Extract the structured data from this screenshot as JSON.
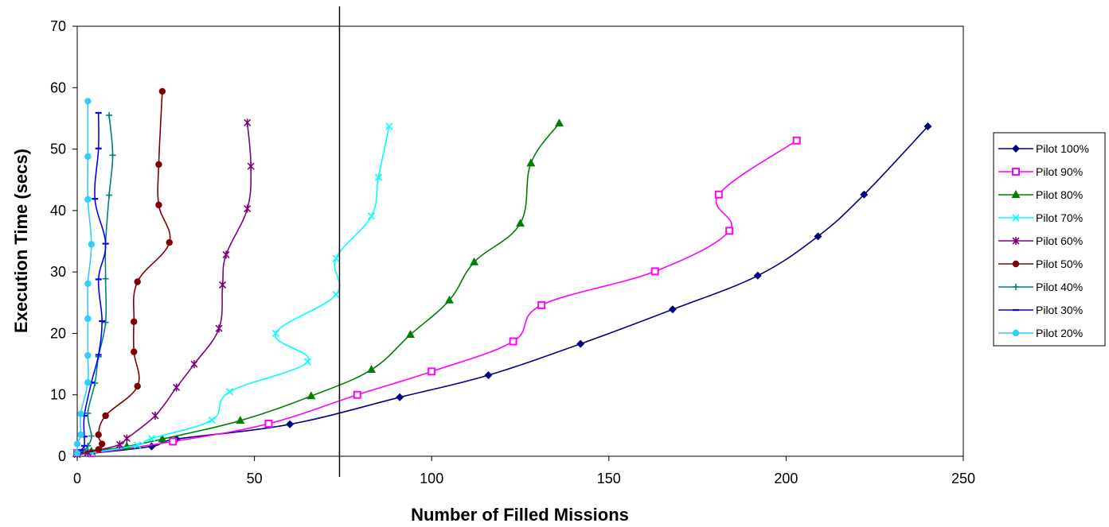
{
  "chart_data": {
    "type": "line",
    "title": "",
    "xlabel": "Number of Filled Missions",
    "ylabel": "Execution Time (secs)",
    "xlim": [
      0,
      250
    ],
    "ylim": [
      0,
      70
    ],
    "xticks": [
      "0",
      "50",
      "100",
      "150",
      "200",
      "250"
    ],
    "yticks": [
      "0",
      "10",
      "20",
      "30",
      "40",
      "50",
      "60",
      "70"
    ],
    "grid": false,
    "legend_position": "right",
    "vertical_reference_line_x": 74,
    "series": [
      {
        "name": "Pilot 100%",
        "color": "#000080",
        "marker": "diamond",
        "points": [
          [
            0,
            0.5
          ],
          [
            4,
            0.5
          ],
          [
            21,
            1.6
          ],
          [
            28,
            2.8
          ],
          [
            60,
            5.2
          ],
          [
            91,
            9.6
          ],
          [
            116,
            13.2
          ],
          [
            142,
            18.3
          ],
          [
            168,
            23.9
          ],
          [
            192,
            29.4
          ],
          [
            209,
            35.8
          ],
          [
            222,
            42.6
          ],
          [
            240,
            53.7
          ]
        ]
      },
      {
        "name": "Pilot 90%",
        "color": "#FF00FF",
        "marker": "square",
        "points": [
          [
            0,
            0.5
          ],
          [
            4,
            0.5
          ],
          [
            27,
            2.4
          ],
          [
            54,
            5.3
          ],
          [
            79,
            10.0
          ],
          [
            100,
            13.8
          ],
          [
            123,
            18.7
          ],
          [
            131,
            24.6
          ],
          [
            163,
            30.1
          ],
          [
            184,
            36.7
          ],
          [
            181,
            42.6
          ],
          [
            203,
            51.4
          ]
        ]
      },
      {
        "name": "Pilot 80%",
        "color": "#008000",
        "marker": "triangle",
        "points": [
          [
            0,
            0.5
          ],
          [
            4,
            0.8
          ],
          [
            14,
            1.6
          ],
          [
            24,
            2.8
          ],
          [
            46,
            5.8
          ],
          [
            66,
            9.8
          ],
          [
            83,
            14.1
          ],
          [
            94,
            19.8
          ],
          [
            105,
            25.4
          ],
          [
            112,
            31.6
          ],
          [
            125,
            37.9
          ],
          [
            128,
            47.7
          ],
          [
            136,
            54.2
          ]
        ]
      },
      {
        "name": "Pilot 70%",
        "color": "#00FFFF",
        "marker": "x",
        "points": [
          [
            0,
            0.5
          ],
          [
            4,
            0.6
          ],
          [
            17,
            1.8
          ],
          [
            21,
            2.9
          ],
          [
            38,
            5.9
          ],
          [
            43,
            10.5
          ],
          [
            65,
            15.4
          ],
          [
            56,
            20.0
          ],
          [
            73,
            26.3
          ],
          [
            73,
            32.2
          ],
          [
            83,
            39.1
          ],
          [
            85,
            45.4
          ],
          [
            88,
            53.7
          ]
        ]
      },
      {
        "name": "Pilot 60%",
        "color": "#800080",
        "marker": "star",
        "points": [
          [
            0,
            0.3
          ],
          [
            3,
            0.6
          ],
          [
            12,
            1.9
          ],
          [
            14,
            2.9
          ],
          [
            22,
            6.6
          ],
          [
            28,
            11.2
          ],
          [
            33,
            15.0
          ],
          [
            40,
            20.8
          ],
          [
            41,
            27.9
          ],
          [
            42,
            32.8
          ],
          [
            48,
            40.3
          ],
          [
            49,
            47.2
          ],
          [
            48,
            54.3
          ]
        ]
      },
      {
        "name": "Pilot 50%",
        "color": "#800000",
        "marker": "circle",
        "points": [
          [
            0,
            0.5
          ],
          [
            6,
            1.1
          ],
          [
            7,
            2.0
          ],
          [
            6,
            3.5
          ],
          [
            8,
            6.6
          ],
          [
            17,
            11.4
          ],
          [
            16,
            17.0
          ],
          [
            16,
            21.9
          ],
          [
            17,
            28.4
          ],
          [
            26,
            34.8
          ],
          [
            23,
            40.9
          ],
          [
            23,
            47.5
          ],
          [
            24,
            59.4
          ]
        ]
      },
      {
        "name": "Pilot 40%",
        "color": "#008080",
        "marker": "plus",
        "points": [
          [
            0,
            0.5
          ],
          [
            2,
            1.0
          ],
          [
            3,
            1.7
          ],
          [
            4,
            3.3
          ],
          [
            3,
            7.0
          ],
          [
            5,
            11.9
          ],
          [
            6,
            16.2
          ],
          [
            8,
            21.8
          ],
          [
            8,
            28.9
          ],
          [
            8,
            34.6
          ],
          [
            9,
            42.5
          ],
          [
            10,
            49.0
          ],
          [
            9,
            55.5
          ]
        ]
      },
      {
        "name": "Pilot 30%",
        "color": "#0000FF",
        "marker": "dash",
        "points": [
          [
            0,
            0.4
          ],
          [
            1,
            1.0
          ],
          [
            2,
            1.7
          ],
          [
            2,
            3.2
          ],
          [
            2,
            6.6
          ],
          [
            4,
            12.0
          ],
          [
            6,
            16.5
          ],
          [
            7,
            22.0
          ],
          [
            6,
            28.8
          ],
          [
            8,
            34.6
          ],
          [
            5,
            41.9
          ],
          [
            6,
            50.1
          ],
          [
            6,
            55.9
          ]
        ]
      },
      {
        "name": "Pilot 20%",
        "color": "#33CCFF",
        "marker": "circle",
        "points": [
          [
            0,
            0.5
          ],
          [
            0,
            2.0
          ],
          [
            1,
            3.5
          ],
          [
            1,
            6.9
          ],
          [
            3,
            12.0
          ],
          [
            3,
            16.4
          ],
          [
            3,
            22.4
          ],
          [
            3,
            28.1
          ],
          [
            4,
            34.5
          ],
          [
            3,
            41.8
          ],
          [
            3,
            48.8
          ],
          [
            3,
            57.8
          ]
        ]
      }
    ]
  }
}
